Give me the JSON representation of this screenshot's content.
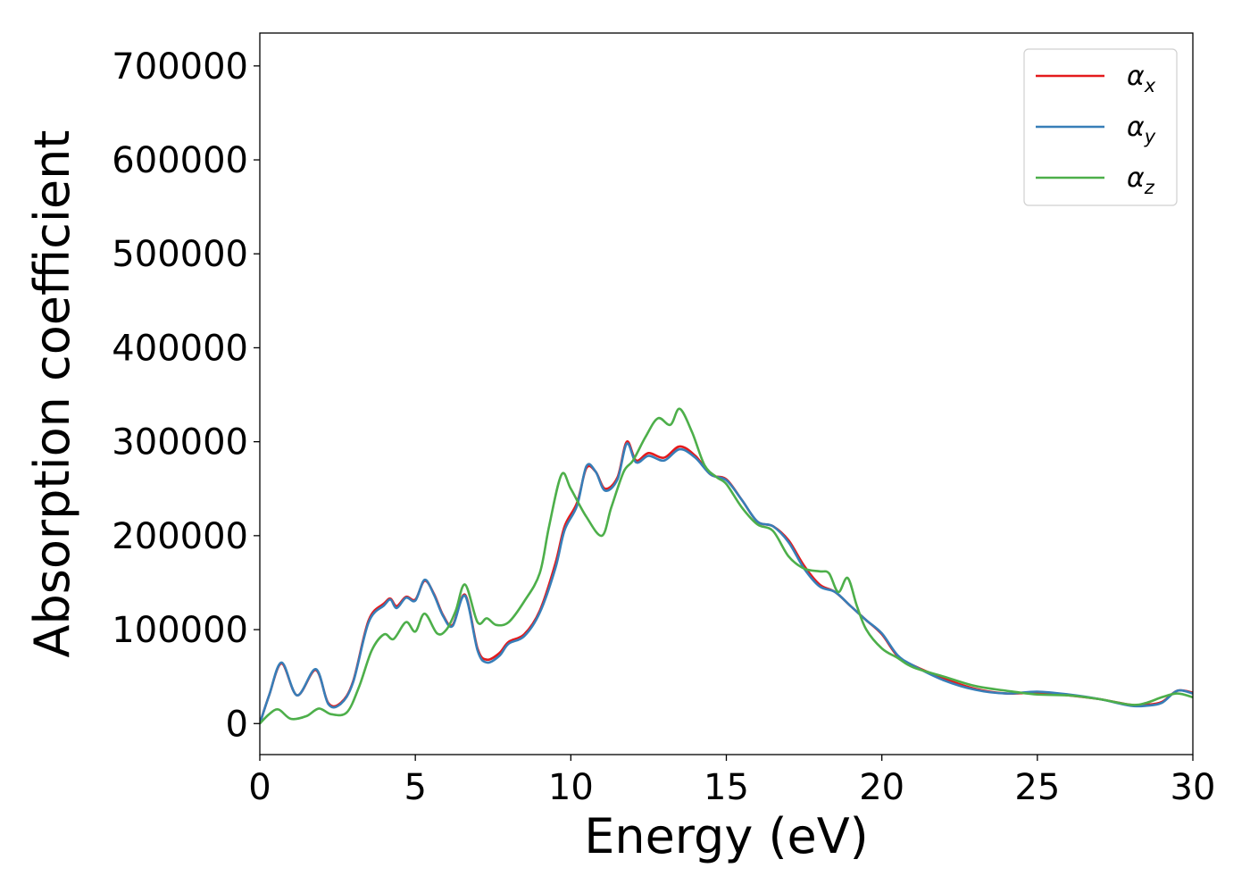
{
  "chart_data": {
    "type": "line",
    "xlabel": "Energy (eV)",
    "ylabel": "Absorption coefficient",
    "xlim": [
      0,
      30
    ],
    "ylim": [
      -33000,
      735000
    ],
    "xticks": [
      0,
      5,
      10,
      15,
      20,
      25,
      30
    ],
    "yticks": [
      0,
      100000,
      200000,
      300000,
      400000,
      500000,
      600000,
      700000
    ],
    "grid": false,
    "legend_position": "top-right",
    "series": [
      {
        "name": "α",
        "subscript": "x",
        "color": "#e41a1c",
        "x": [
          0,
          0.3,
          0.7,
          1.2,
          1.8,
          2.2,
          2.6,
          3.0,
          3.5,
          4.0,
          4.2,
          4.4,
          4.7,
          5.0,
          5.3,
          5.6,
          5.9,
          6.2,
          6.6,
          7.0,
          7.3,
          7.7,
          8.0,
          8.5,
          9.0,
          9.5,
          9.8,
          10.2,
          10.5,
          10.8,
          11.1,
          11.5,
          11.8,
          12.1,
          12.5,
          13.0,
          13.5,
          14.0,
          14.5,
          15.0,
          15.5,
          16.0,
          16.5,
          17.0,
          17.5,
          18.0,
          18.5,
          19.0,
          19.5,
          20.0,
          20.5,
          21.0,
          22.0,
          23.0,
          24.0,
          25.0,
          26.0,
          27.0,
          28.0,
          28.5,
          29.0,
          29.5,
          30.0
        ],
        "y": [
          0,
          30000,
          64000,
          30000,
          57000,
          22000,
          22000,
          45000,
          110000,
          128000,
          133000,
          125000,
          135000,
          132000,
          152000,
          138000,
          115000,
          105000,
          137000,
          80000,
          68000,
          75000,
          87000,
          95000,
          120000,
          170000,
          210000,
          235000,
          272000,
          268000,
          250000,
          262000,
          300000,
          280000,
          288000,
          283000,
          295000,
          285000,
          265000,
          260000,
          238000,
          215000,
          210000,
          195000,
          168000,
          148000,
          140000,
          125000,
          110000,
          95000,
          72000,
          62000,
          48000,
          37000,
          32000,
          33000,
          30000,
          26000,
          20000,
          20000,
          23000,
          35000,
          33000
        ]
      },
      {
        "name": "α",
        "subscript": "y",
        "color": "#377eb8",
        "x": [
          0,
          0.3,
          0.7,
          1.2,
          1.8,
          2.2,
          2.6,
          3.0,
          3.5,
          4.0,
          4.2,
          4.4,
          4.7,
          5.0,
          5.3,
          5.6,
          5.9,
          6.2,
          6.6,
          7.0,
          7.3,
          7.7,
          8.0,
          8.5,
          9.0,
          9.5,
          9.8,
          10.2,
          10.5,
          10.8,
          11.1,
          11.5,
          11.8,
          12.1,
          12.5,
          13.0,
          13.5,
          14.0,
          14.5,
          15.0,
          15.5,
          16.0,
          16.5,
          17.0,
          17.5,
          18.0,
          18.5,
          19.0,
          19.5,
          20.0,
          20.5,
          21.0,
          22.0,
          23.0,
          24.0,
          25.0,
          26.0,
          27.0,
          28.0,
          28.5,
          29.0,
          29.5,
          30.0
        ],
        "y": [
          0,
          30000,
          65000,
          30000,
          58000,
          21000,
          21000,
          44000,
          108000,
          126000,
          132000,
          123000,
          134000,
          131000,
          153000,
          137000,
          114000,
          104000,
          136000,
          78000,
          65000,
          72000,
          85000,
          93000,
          118000,
          165000,
          206000,
          232000,
          274000,
          268000,
          248000,
          260000,
          298000,
          278000,
          285000,
          280000,
          292000,
          283000,
          265000,
          259000,
          238000,
          215000,
          210000,
          193000,
          165000,
          146000,
          140000,
          125000,
          110000,
          96000,
          73000,
          62000,
          46000,
          36000,
          32000,
          34000,
          31000,
          26000,
          19000,
          19000,
          22000,
          35000,
          32000
        ]
      },
      {
        "name": "α",
        "subscript": "z",
        "color": "#4daf4a",
        "x": [
          0,
          0.3,
          0.6,
          1.0,
          1.5,
          1.9,
          2.3,
          2.8,
          3.2,
          3.6,
          4.0,
          4.3,
          4.7,
          5.0,
          5.3,
          5.7,
          6.0,
          6.3,
          6.6,
          7.0,
          7.3,
          7.6,
          8.0,
          8.5,
          9.0,
          9.3,
          9.7,
          10.0,
          10.5,
          11.0,
          11.3,
          11.7,
          12.0,
          12.4,
          12.8,
          13.2,
          13.5,
          13.9,
          14.3,
          14.7,
          15.0,
          15.5,
          16.0,
          16.5,
          17.0,
          17.5,
          18.0,
          18.3,
          18.6,
          18.9,
          19.2,
          19.5,
          20.0,
          20.5,
          21.0,
          22.0,
          23.0,
          24.0,
          25.0,
          26.0,
          27.0,
          28.0,
          28.5,
          29.0,
          29.5,
          30.0
        ],
        "y": [
          0,
          10000,
          15000,
          5000,
          8000,
          16000,
          10000,
          12000,
          40000,
          78000,
          95000,
          90000,
          108000,
          98000,
          117000,
          96000,
          100000,
          120000,
          148000,
          108000,
          112000,
          105000,
          108000,
          130000,
          160000,
          210000,
          265000,
          250000,
          220000,
          200000,
          230000,
          268000,
          280000,
          305000,
          325000,
          318000,
          335000,
          310000,
          275000,
          262000,
          255000,
          230000,
          212000,
          205000,
          178000,
          165000,
          162000,
          160000,
          140000,
          155000,
          125000,
          100000,
          80000,
          70000,
          60000,
          50000,
          40000,
          35000,
          31000,
          30000,
          26000,
          20000,
          22000,
          28000,
          32000,
          28000
        ]
      }
    ]
  }
}
